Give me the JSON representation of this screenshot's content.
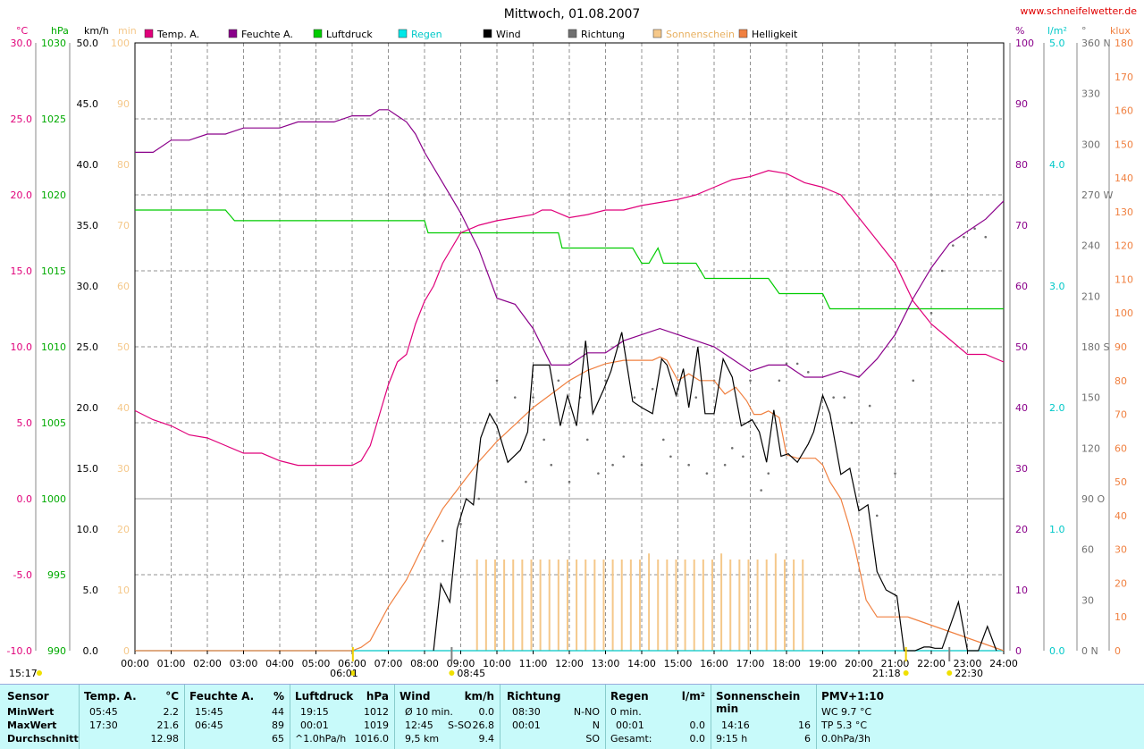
{
  "title": "Mittwoch, 01.08.2007",
  "url": "www.schneifelwetter.de",
  "timestamp": "15:17",
  "colors": {
    "temp": "#e0007a",
    "humidity": "#8a008a",
    "pressure": "#00cc00",
    "rain": "#00c8c8",
    "wind": "#000000",
    "direction": "#707070",
    "sunshine": "#f5c88a",
    "brightness": "#f08040"
  },
  "legend": [
    {
      "key": "temp",
      "label": "Temp. A.",
      "color": "#e0007a"
    },
    {
      "key": "humidity",
      "label": "Feuchte A.",
      "color": "#8a008a"
    },
    {
      "key": "pressure",
      "label": "Luftdruck",
      "color": "#00cc00"
    },
    {
      "key": "rain",
      "label": "Regen",
      "color": "#00e8e8"
    },
    {
      "key": "wind",
      "label": "Wind",
      "color": "#000000"
    },
    {
      "key": "direction",
      "label": "Richtung",
      "color": "#707070"
    },
    {
      "key": "sunshine",
      "label": "Sonnenschein",
      "color": "#f5c88a"
    },
    {
      "key": "brightness",
      "label": "Helligkeit",
      "color": "#f08040"
    }
  ],
  "axes": {
    "temp": {
      "unit": "°C",
      "ticks": [
        "30.0",
        "25.0",
        "20.0",
        "15.0",
        "10.0",
        "5.0",
        "0.0",
        "-5.0",
        "-10.0"
      ],
      "color": "#e0007a"
    },
    "pressure": {
      "unit": "hPa",
      "ticks": [
        "1030",
        "1025",
        "1020",
        "1015",
        "1010",
        "1005",
        "1000",
        "995",
        "990"
      ],
      "color": "#00aa00"
    },
    "wind": {
      "unit": "km/h",
      "ticks": [
        "50.0",
        "45.0",
        "40.0",
        "35.0",
        "30.0",
        "25.0",
        "20.0",
        "15.0",
        "10.0",
        "5.0",
        "0.0"
      ],
      "color": "#000000"
    },
    "sunmin": {
      "unit": "min",
      "ticks": [
        "100",
        "90",
        "80",
        "70",
        "60",
        "50",
        "40",
        "30",
        "20",
        "10",
        "0"
      ],
      "color": "#f5c88a"
    },
    "humidity": {
      "unit": "%",
      "ticks": [
        "100",
        "90",
        "80",
        "70",
        "60",
        "50",
        "40",
        "30",
        "20",
        "10",
        "0"
      ],
      "color": "#8a008a"
    },
    "rain": {
      "unit": "l/m²",
      "ticks": [
        "5.0",
        "4.0",
        "3.0",
        "2.0",
        "1.0",
        "0.0"
      ],
      "color": "#00c8c8"
    },
    "direction": {
      "unit": "°",
      "ticks": [
        "360 N",
        "330",
        "300",
        "270 W",
        "240",
        "210",
        "180 S",
        "150",
        "120",
        "90  O",
        "60",
        "30",
        "0   N"
      ],
      "color": "#707070"
    },
    "brightness": {
      "unit": "klux",
      "ticks": [
        "180",
        "170",
        "160",
        "150",
        "140",
        "130",
        "120",
        "110",
        "100",
        "90",
        "80",
        "70",
        "60",
        "50",
        "40",
        "30",
        "20",
        "10",
        "0"
      ],
      "color": "#f08040"
    }
  },
  "x_ticks": [
    "00:00",
    "01:00",
    "02:00",
    "03:00",
    "04:00",
    "05:00",
    "06:00",
    "07:00",
    "08:00",
    "09:00",
    "10:00",
    "11:00",
    "12:00",
    "13:00",
    "14:00",
    "15:00",
    "16:00",
    "17:00",
    "18:00",
    "19:00",
    "20:00",
    "21:00",
    "22:00",
    "23:00",
    "24:00"
  ],
  "sun_marks": [
    {
      "label": "06:01",
      "t": 6.02,
      "kind": "sunrise"
    },
    {
      "label": "08:45",
      "t": 8.75,
      "kind": "low"
    },
    {
      "label": "21:18",
      "t": 21.3,
      "kind": "sunset"
    },
    {
      "label": "22:30",
      "t": 22.5,
      "kind": "low"
    }
  ],
  "stats": {
    "sensor": {
      "h": "Sensor",
      "min": "MinWert",
      "max": "MaxWert",
      "avg": "Durchschnitt"
    },
    "temp": {
      "h": "Temp. A.",
      "u": "°C",
      "min_t": "05:45",
      "min_v": "2.2",
      "max_t": "17:30",
      "max_v": "21.6",
      "avg_v": "12.98"
    },
    "hum": {
      "h": "Feuchte A.",
      "u": "%",
      "min_t": "15:45",
      "min_v": "44",
      "max_t": "06:45",
      "max_v": "89",
      "avg_v": "65"
    },
    "press": {
      "h": "Luftdruck",
      "u": "hPa",
      "min_t": "19:15",
      "min_v": "1012",
      "max_t": "00:01",
      "max_v": "1019",
      "avg_t": "^1.0hPa/h",
      "avg_v": "1016.0"
    },
    "wind": {
      "h": "Wind",
      "u": "km/h",
      "min_t": "Ø 10 min.",
      "min_v": "0.0",
      "max_t": "12:45",
      "max_d": "S-SO",
      "max_v": "26.8",
      "avg_t": "9,5 km",
      "avg_v": "9.4"
    },
    "dir": {
      "h": "Richtung",
      "min_t": "08:30",
      "min_v": "N-NO",
      "max_t": "00:01",
      "max_v": "N",
      "avg_v": "SO"
    },
    "rain": {
      "h": "Regen",
      "u": "l/m²",
      "min_t": "0 min.",
      "max_t": "00:01",
      "max_v": "0.0",
      "avg_t": "Gesamt:",
      "avg_v": "0.0"
    },
    "sun": {
      "h": "Sonnenschein min",
      "max_t": "14:16",
      "max_v": "16",
      "avg_t": "9:15 h",
      "avg_v": "6"
    },
    "pmv": {
      "h": "PMV+1:10",
      "l1": "WC 9.7 °C",
      "l2": "TP 5.3 °C",
      "l3": "0.0hPa/3h"
    }
  },
  "chart_data": {
    "type": "line",
    "title": "Mittwoch, 01.08.2007",
    "x_unit": "h",
    "xlim": [
      0,
      24
    ],
    "grid": true,
    "series": [
      {
        "name": "Temp. A.",
        "unit": "°C",
        "ylim": [
          -10,
          30
        ],
        "x": [
          0,
          0.5,
          1,
          1.5,
          2,
          2.5,
          3,
          3.5,
          4,
          4.5,
          5,
          5.5,
          5.75,
          6,
          6.25,
          6.5,
          6.75,
          7,
          7.25,
          7.5,
          7.75,
          8,
          8.25,
          8.5,
          8.75,
          9,
          9.5,
          10,
          10.5,
          11,
          11.25,
          11.5,
          12,
          12.5,
          13,
          13.5,
          14,
          14.5,
          15,
          15.5,
          16,
          16.5,
          17,
          17.5,
          18,
          18.5,
          19,
          19.5,
          20,
          20.5,
          21,
          21.5,
          22,
          22.5,
          23,
          23.5,
          24
        ],
        "y": [
          5.8,
          5.2,
          4.8,
          4.2,
          4.0,
          3.5,
          3.0,
          3.0,
          2.5,
          2.2,
          2.2,
          2.2,
          2.2,
          2.2,
          2.5,
          3.5,
          5.5,
          7.5,
          9.0,
          9.5,
          11.5,
          13.0,
          14.0,
          15.5,
          16.5,
          17.5,
          18.0,
          18.3,
          18.5,
          18.7,
          19.0,
          19.0,
          18.5,
          18.7,
          19.0,
          19.0,
          19.3,
          19.5,
          19.7,
          20.0,
          20.5,
          21.0,
          21.2,
          21.6,
          21.4,
          20.8,
          20.5,
          20.0,
          18.5,
          17.0,
          15.5,
          13.0,
          11.5,
          10.5,
          9.5,
          9.5,
          9.0
        ]
      },
      {
        "name": "Feuchte A.",
        "unit": "%",
        "ylim": [
          0,
          100
        ],
        "x": [
          0,
          0.5,
          1,
          1.5,
          2,
          2.5,
          3,
          3.5,
          4,
          4.5,
          5,
          5.5,
          6,
          6.5,
          6.75,
          7,
          7.25,
          7.5,
          7.75,
          8,
          8.5,
          9,
          9.5,
          10,
          10.5,
          11,
          11.5,
          12,
          12.5,
          13,
          13.5,
          14,
          14.5,
          15,
          15.5,
          16,
          16.5,
          17,
          17.5,
          18,
          18.5,
          19,
          19.5,
          20,
          20.5,
          21,
          21.5,
          22,
          22.5,
          23,
          23.5,
          24
        ],
        "y": [
          82,
          82,
          84,
          84,
          85,
          85,
          86,
          86,
          86,
          87,
          87,
          87,
          88,
          88,
          89,
          89,
          88,
          87,
          85,
          82,
          77,
          72,
          66,
          58,
          57,
          53,
          47,
          47,
          49,
          49,
          51,
          52,
          53,
          52,
          51,
          50,
          48,
          46,
          47,
          47,
          45,
          45,
          46,
          45,
          48,
          52,
          58,
          63,
          67,
          69,
          71,
          74
        ]
      },
      {
        "name": "Luftdruck",
        "unit": "hPa",
        "ylim": [
          990,
          1030
        ],
        "x": [
          0,
          2.5,
          2.75,
          8,
          8.1,
          11.7,
          11.8,
          13.75,
          14,
          14.2,
          14.45,
          14.6,
          15.5,
          15.75,
          17.5,
          17.8,
          19,
          19.2,
          24
        ],
        "y": [
          1019,
          1019,
          1018.3,
          1018.3,
          1017.5,
          1017.5,
          1016.5,
          1016.5,
          1015.5,
          1015.5,
          1016.5,
          1015.5,
          1015.5,
          1014.5,
          1014.5,
          1013.5,
          1013.5,
          1012.5,
          1012.5
        ]
      },
      {
        "name": "Regen",
        "unit": "l/m²",
        "ylim": [
          0,
          5
        ],
        "x": [
          0,
          24
        ],
        "y": [
          0,
          0
        ]
      },
      {
        "name": "Wind",
        "unit": "km/h",
        "ylim": [
          0,
          50
        ],
        "x": [
          8.25,
          8.45,
          8.7,
          8.9,
          9.15,
          9.35,
          9.55,
          9.8,
          10,
          10.3,
          10.65,
          10.85,
          11,
          11.25,
          11.45,
          11.75,
          11.95,
          12.2,
          12.45,
          12.65,
          12.95,
          13.15,
          13.45,
          13.75,
          14.0,
          14.3,
          14.55,
          14.7,
          14.95,
          15.15,
          15.3,
          15.55,
          15.75,
          16.0,
          16.25,
          16.5,
          16.75,
          17.05,
          17.25,
          17.45,
          17.65,
          17.85,
          18.05,
          18.3,
          18.6,
          18.75,
          19.0,
          19.2,
          19.5,
          19.75,
          20.0,
          20.25,
          20.5,
          20.75,
          21.05,
          21.25,
          21.55,
          21.8,
          21.95,
          22.1,
          22.3,
          22.75,
          23.0,
          23.3,
          23.55,
          23.8
        ],
        "y": [
          0,
          5.5,
          4,
          10,
          12.5,
          12,
          17.5,
          19.5,
          18.5,
          15.5,
          16.5,
          18,
          23.5,
          23.5,
          23.5,
          18.5,
          21,
          18.5,
          25.5,
          19.5,
          21.5,
          23,
          26.2,
          20.5,
          20,
          19.5,
          24,
          23.5,
          21,
          23.2,
          20,
          25,
          19.5,
          19.5,
          24,
          22.5,
          18.5,
          19,
          18,
          15.5,
          19.8,
          16,
          16.2,
          15.5,
          17,
          18,
          21,
          19.5,
          14.5,
          15,
          11.5,
          12,
          6.5,
          5,
          4.5,
          0,
          0,
          0.3,
          0.3,
          0.2,
          0.2,
          4,
          0,
          0,
          2,
          0
        ]
      },
      {
        "name": "Richtung",
        "unit": "°",
        "ylim": [
          0,
          360
        ],
        "x": [
          8.5,
          9,
          9.5,
          10,
          10.5,
          10.8,
          11,
          11.3,
          11.5,
          11.7,
          12,
          12.3,
          12.5,
          12.8,
          13.0,
          13.2,
          13.5,
          13.8,
          14.0,
          14.3,
          14.6,
          14.8,
          15.0,
          15.3,
          15.5,
          15.8,
          16.0,
          16.3,
          16.5,
          16.8,
          17.0,
          17.3,
          17.5,
          17.8,
          18.0,
          18.3,
          18.6,
          19.0,
          19.3,
          19.6,
          19.8,
          20.3,
          20.5,
          21.0,
          21.5,
          22.0,
          22.3,
          22.6,
          22.9,
          23.2,
          23.5
        ],
        "y": [
          65,
          75,
          90,
          160,
          150,
          100,
          150,
          125,
          110,
          160,
          100,
          150,
          125,
          105,
          160,
          110,
          115,
          150,
          110,
          155,
          125,
          115,
          155,
          110,
          150,
          105,
          160,
          110,
          120,
          115,
          160,
          95,
          105,
          160,
          170,
          170,
          165,
          150,
          150,
          150,
          135,
          145,
          80,
          105,
          160,
          200,
          225,
          240,
          245,
          250,
          245
        ]
      },
      {
        "name": "Sonnenschein",
        "unit": "min",
        "ylim": [
          0,
          100
        ],
        "x": [
          9.45,
          9.7,
          9.95,
          10.2,
          10.45,
          10.7,
          10.95,
          11.2,
          11.45,
          11.7,
          11.95,
          12.2,
          12.45,
          12.7,
          12.95,
          13.2,
          13.45,
          13.7,
          13.95,
          14.2,
          14.45,
          14.7,
          14.95,
          15.2,
          15.45,
          15.7,
          15.95,
          16.2,
          16.45,
          16.7,
          16.95,
          17.2,
          17.45,
          17.7,
          17.95,
          18.2,
          18.45
        ],
        "y": [
          15,
          15,
          15,
          15,
          15,
          15,
          15,
          15,
          15,
          15,
          15,
          15,
          15,
          15,
          15,
          15,
          15,
          15,
          15,
          16,
          15,
          15,
          15,
          15,
          15,
          15,
          15,
          16,
          15,
          15,
          15,
          15,
          15,
          16,
          15,
          15,
          15
        ]
      },
      {
        "name": "Helligkeit",
        "unit": "klux",
        "ylim": [
          0,
          180
        ],
        "x": [
          0,
          6.0,
          6.25,
          6.5,
          6.75,
          7,
          7.5,
          8,
          8.5,
          9,
          9.5,
          10,
          10.5,
          11,
          11.5,
          12,
          12.5,
          13,
          13.5,
          14,
          14.3,
          14.5,
          14.7,
          15,
          15.3,
          15.6,
          16,
          16.3,
          16.6,
          16.9,
          17.1,
          17.3,
          17.5,
          17.8,
          18.0,
          18.3,
          18.5,
          18.8,
          19.0,
          19.2,
          19.5,
          19.7,
          19.9,
          20.2,
          20.5,
          21.0,
          21.2,
          21.35,
          24
        ],
        "y": [
          0,
          0,
          1,
          3,
          8,
          13,
          21,
          32,
          42,
          49,
          56,
          62,
          67,
          72,
          76,
          80,
          83,
          85,
          86,
          86,
          86,
          87,
          86,
          80,
          82,
          80,
          80,
          76,
          78,
          74,
          70,
          70,
          71,
          69,
          58,
          57,
          57,
          57,
          55,
          50,
          45,
          38,
          30,
          15,
          10,
          10,
          10,
          10,
          0
        ]
      }
    ]
  }
}
